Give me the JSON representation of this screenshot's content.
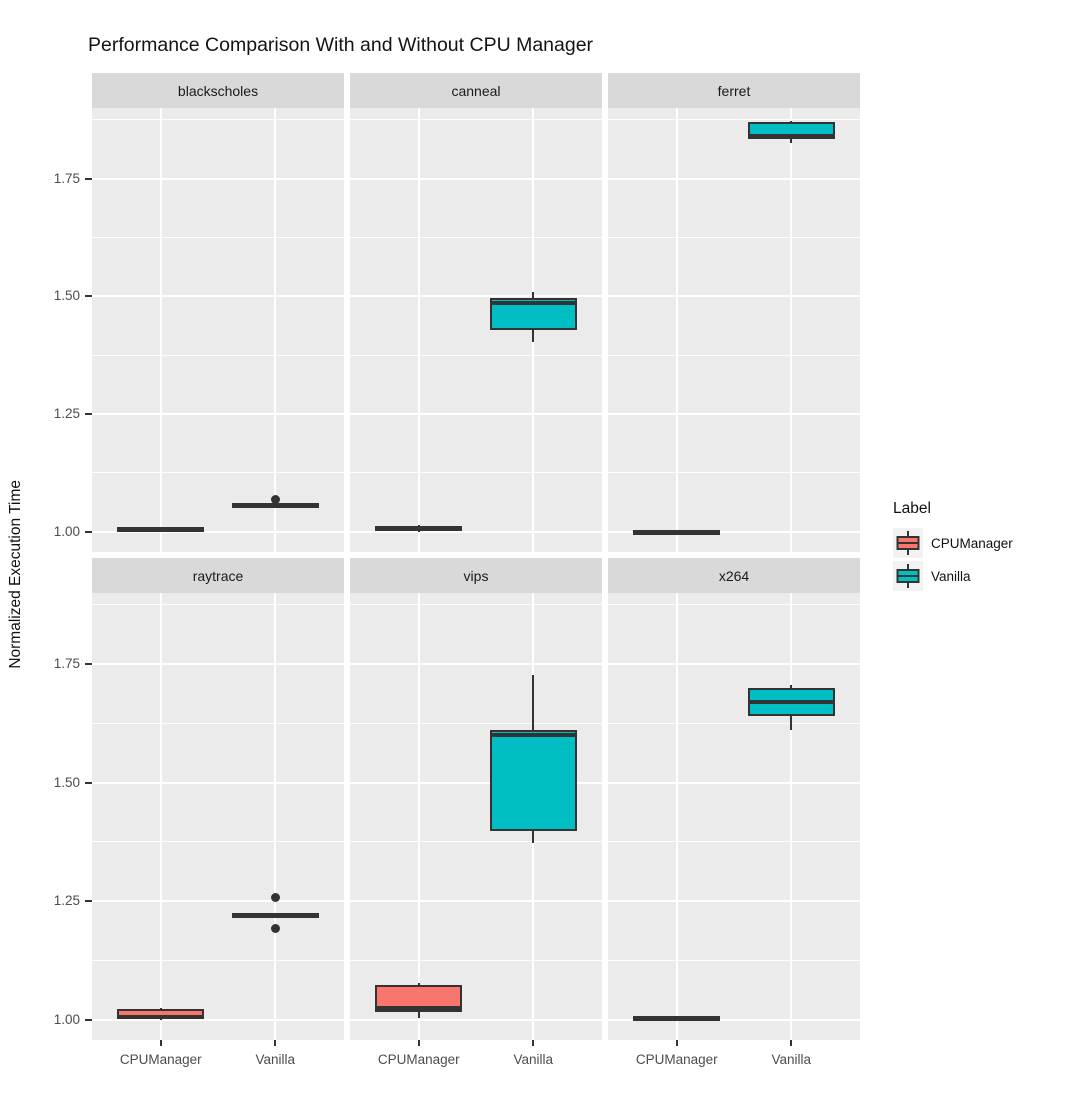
{
  "chart_data": {
    "type": "boxplot",
    "title": "Performance Comparison With and Without CPU Manager",
    "ylabel": "Normalized Execution Time",
    "x_categories": [
      "CPUManager",
      "Vanilla"
    ],
    "y_ticks": [
      "1.00",
      "1.25",
      "1.50",
      "1.75"
    ],
    "y_minor_ticks": [
      1.125,
      1.375,
      1.625,
      1.875
    ],
    "y_domain": [
      0.957,
      1.9
    ],
    "grid": true,
    "legend": {
      "title": "Label",
      "position": "right",
      "entries": [
        {
          "label": "CPUManager",
          "color": "#F8766D"
        },
        {
          "label": "Vanilla",
          "color": "#00BFC4"
        }
      ]
    },
    "style": {
      "panel_bg": "#EBEBEB",
      "strip_bg": "#D9D9D9",
      "grid_color": "#FFFFFF",
      "box_stroke": "#333333",
      "axis_text_color": "#4D4D4D"
    },
    "facets": [
      {
        "name": "blackscholes",
        "row": 0,
        "col": 0,
        "boxes": [
          {
            "group": "CPUManager",
            "color": "#F8766D",
            "min": 1.002,
            "q1": 1.004,
            "median": 1.006,
            "q3": 1.008,
            "max": 1.01,
            "outliers": []
          },
          {
            "group": "Vanilla",
            "color": "#00BFC4",
            "min": 1.051,
            "q1": 1.053,
            "median": 1.056,
            "q3": 1.058,
            "max": 1.06,
            "outliers": [
              1.068
            ]
          }
        ]
      },
      {
        "name": "canneal",
        "row": 0,
        "col": 1,
        "boxes": [
          {
            "group": "CPUManager",
            "color": "#F8766D",
            "min": 0.999,
            "q1": 1.001,
            "median": 1.006,
            "q3": 1.013,
            "max": 1.015,
            "outliers": []
          },
          {
            "group": "Vanilla",
            "color": "#00BFC4",
            "min": 1.403,
            "q1": 1.428,
            "median": 1.485,
            "q3": 1.497,
            "max": 1.51,
            "outliers": []
          }
        ]
      },
      {
        "name": "ferret",
        "row": 0,
        "col": 2,
        "boxes": [
          {
            "group": "CPUManager",
            "color": "#F8766D",
            "min": 0.997,
            "q1": 0.999,
            "median": 1.0,
            "q3": 1.001,
            "max": 1.003,
            "outliers": []
          },
          {
            "group": "Vanilla",
            "color": "#00BFC4",
            "min": 1.825,
            "q1": 1.834,
            "median": 1.84,
            "q3": 1.87,
            "max": 1.872,
            "outliers": []
          }
        ]
      },
      {
        "name": "raytrace",
        "row": 1,
        "col": 0,
        "boxes": [
          {
            "group": "CPUManager",
            "color": "#F8766D",
            "min": 1.0,
            "q1": 1.002,
            "median": 1.006,
            "q3": 1.022,
            "max": 1.024,
            "outliers": []
          },
          {
            "group": "Vanilla",
            "color": "#00BFC4",
            "min": 1.218,
            "q1": 1.22,
            "median": 1.221,
            "q3": 1.223,
            "max": 1.225,
            "outliers": [
              1.258,
              1.193
            ]
          }
        ]
      },
      {
        "name": "vips",
        "row": 1,
        "col": 1,
        "boxes": [
          {
            "group": "CPUManager",
            "color": "#F8766D",
            "min": 1.004,
            "q1": 1.016,
            "median": 1.024,
            "q3": 1.072,
            "max": 1.077,
            "outliers": []
          },
          {
            "group": "Vanilla",
            "color": "#00BFC4",
            "min": 1.372,
            "q1": 1.398,
            "median": 1.6,
            "q3": 1.612,
            "max": 1.728,
            "outliers": []
          }
        ]
      },
      {
        "name": "x264",
        "row": 1,
        "col": 2,
        "boxes": [
          {
            "group": "CPUManager",
            "color": "#F8766D",
            "min": 1.0,
            "q1": 1.002,
            "median": 1.004,
            "q3": 1.006,
            "max": 1.008,
            "outliers": []
          },
          {
            "group": "Vanilla",
            "color": "#00BFC4",
            "min": 1.612,
            "q1": 1.641,
            "median": 1.669,
            "q3": 1.7,
            "max": 1.706,
            "outliers": []
          }
        ]
      }
    ]
  }
}
